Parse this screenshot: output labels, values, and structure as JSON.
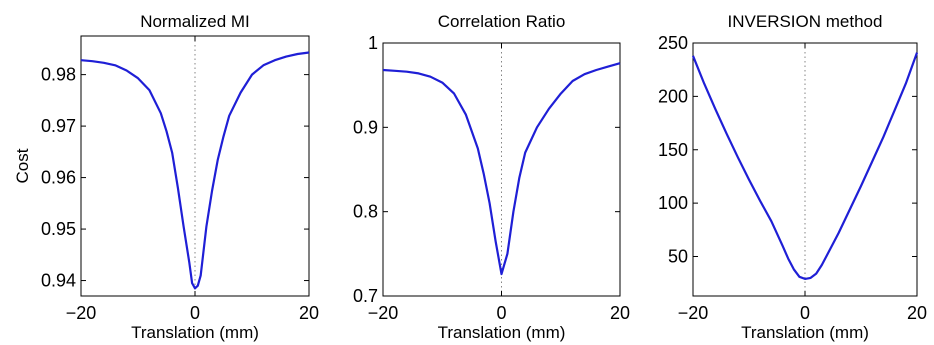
{
  "chart_data": [
    {
      "type": "line",
      "title": "Normalized MI",
      "xlabel": "Translation (mm)",
      "ylabel": "Cost",
      "xlim": [
        -20,
        20
      ],
      "ylim": [
        0.937,
        0.9875
      ],
      "xticks": [
        -20,
        0,
        20
      ],
      "xtick_labels": [
        "−20",
        "0",
        "20"
      ],
      "yticks": [
        0.94,
        0.95,
        0.96,
        0.97,
        0.98
      ],
      "ytick_labels": [
        "0.94",
        "0.95",
        "0.96",
        "0.97",
        "0.98"
      ],
      "grid": "dotted at x = 0",
      "color": "#1f1fd6",
      "series": [
        {
          "x": [
            -20,
            -18,
            -16,
            -14,
            -12,
            -10,
            -8,
            -6,
            -5,
            -4,
            -3,
            -2,
            -1,
            -0.5,
            0,
            0.5,
            1,
            2,
            3,
            4,
            5,
            6,
            8,
            10,
            12,
            14,
            16,
            18,
            20
          ],
          "values": [
            0.9828,
            0.9826,
            0.9823,
            0.9818,
            0.9808,
            0.9793,
            0.977,
            0.9725,
            0.969,
            0.9648,
            0.958,
            0.9505,
            0.9435,
            0.9395,
            0.9385,
            0.939,
            0.941,
            0.9505,
            0.9575,
            0.9635,
            0.968,
            0.972,
            0.9765,
            0.98,
            0.9818,
            0.9828,
            0.9835,
            0.984,
            0.9843
          ]
        }
      ]
    },
    {
      "type": "line",
      "title": "Correlation Ratio",
      "xlabel": "Translation (mm)",
      "ylabel": "",
      "xlim": [
        -20,
        20
      ],
      "ylim": [
        0.7,
        1.0
      ],
      "xticks": [
        -20,
        0,
        20
      ],
      "xtick_labels": [
        "−20",
        "0",
        "20"
      ],
      "yticks": [
        0.7,
        0.8,
        0.9,
        1.0
      ],
      "ytick_labels": [
        "0.7",
        "0.8",
        "0.9",
        "1"
      ],
      "grid": "dotted at x = 0",
      "color": "#1f1fd6",
      "series": [
        {
          "x": [
            -20,
            -18,
            -16,
            -14,
            -12,
            -10,
            -8,
            -6,
            -4,
            -3,
            -2,
            -1,
            0,
            1,
            2,
            3,
            4,
            6,
            8,
            10,
            12,
            14,
            16,
            18,
            20
          ],
          "values": [
            0.968,
            0.967,
            0.966,
            0.964,
            0.96,
            0.953,
            0.94,
            0.915,
            0.875,
            0.845,
            0.81,
            0.765,
            0.726,
            0.75,
            0.8,
            0.84,
            0.87,
            0.9,
            0.922,
            0.94,
            0.955,
            0.963,
            0.968,
            0.972,
            0.976
          ]
        }
      ]
    },
    {
      "type": "line",
      "title": "INVERSION method",
      "xlabel": "Translation (mm)",
      "ylabel": "",
      "xlim": [
        -20,
        20
      ],
      "ylim": [
        13,
        250
      ],
      "xticks": [
        -20,
        0,
        20
      ],
      "xtick_labels": [
        "−20",
        "0",
        "20"
      ],
      "yticks": [
        50,
        100,
        150,
        200,
        250
      ],
      "ytick_labels": [
        "50",
        "100",
        "150",
        "200",
        "250"
      ],
      "grid": "dotted at x = 0",
      "color": "#1f1fd6",
      "series": [
        {
          "x": [
            -20,
            -18,
            -16,
            -14,
            -12,
            -10,
            -8,
            -6,
            -4,
            -3,
            -2,
            -1,
            0,
            1,
            2,
            3,
            4,
            6,
            8,
            10,
            12,
            14,
            16,
            18,
            20
          ],
          "values": [
            238,
            212,
            188,
            165,
            143,
            122,
            102,
            83,
            60,
            48,
            38,
            31,
            29,
            30,
            34,
            42,
            52,
            72,
            94,
            116,
            139,
            162,
            187,
            212,
            241
          ]
        }
      ]
    }
  ]
}
